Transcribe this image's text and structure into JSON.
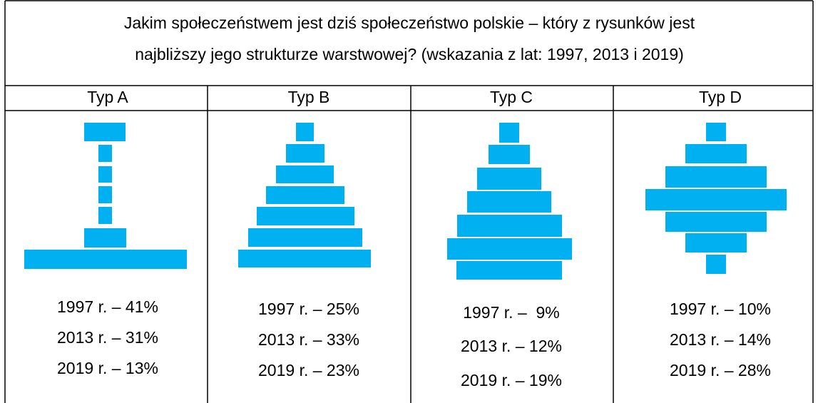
{
  "header": {
    "title_lines": [
      "Jakim społeczeństwem jest dziś społeczeństwo polskie – który z rysunków jest",
      "najbliższy jego strukturze warstwowej? (wskazania z lat: 1997, 2013 i 2019)"
    ]
  },
  "table": {
    "columns": [
      {
        "label": "Typ A",
        "results": [
          "1997 r. – 41%",
          "2013 r. – 31%",
          "2019 r. – 13%"
        ]
      },
      {
        "label": "Typ B",
        "results": [
          "1997 r. – 25%",
          "2013 r. – 33%",
          "2019 r. – 23%"
        ]
      },
      {
        "label": "Typ C",
        "results": [
          "1997 r. –  9%",
          "2013 r. – 12%",
          "2019 r. – 19%"
        ]
      },
      {
        "label": "Typ D",
        "results": [
          "1997 r. – 10%",
          "2013 r. – 14%",
          "2019 r. – 28%"
        ]
      }
    ]
  }
}
